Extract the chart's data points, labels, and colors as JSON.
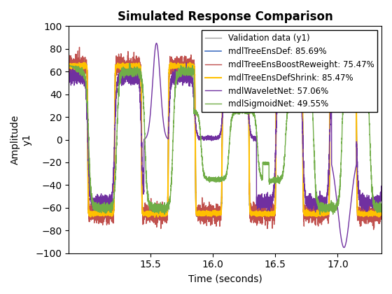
{
  "title": "Simulated Response Comparison",
  "xlabel": "Time (seconds)",
  "ylabel": "Amplitude\ny1",
  "xlim": [
    14.85,
    17.35
  ],
  "ylim": [
    -100,
    100
  ],
  "yticks": [
    -100,
    -80,
    -60,
    -40,
    -20,
    0,
    20,
    40,
    60,
    80,
    100
  ],
  "xticks": [
    15.5,
    16.0,
    16.5,
    17.0
  ],
  "legend_labels": [
    "Validation data (y1)",
    "mdlTreeEnsDef: 85.69%",
    "mdlTreeEnsBoostReweight: 75.47%",
    "mdlTreeEnsDefShrink: 85.47%",
    "mdlWaveletNet: 57.06%",
    "mdlSigmoidNet: 49.55%"
  ],
  "line_colors": [
    "#a0a0a0",
    "#4472C4",
    "#C0504D",
    "#FFC000",
    "#7030A0",
    "#70AD47"
  ],
  "line_widths": [
    1.0,
    1.2,
    1.0,
    1.5,
    1.0,
    1.0
  ],
  "background_color": "#ffffff",
  "title_fontsize": 12,
  "axis_fontsize": 10,
  "tick_fontsize": 10,
  "legend_fontsize": 8.5
}
